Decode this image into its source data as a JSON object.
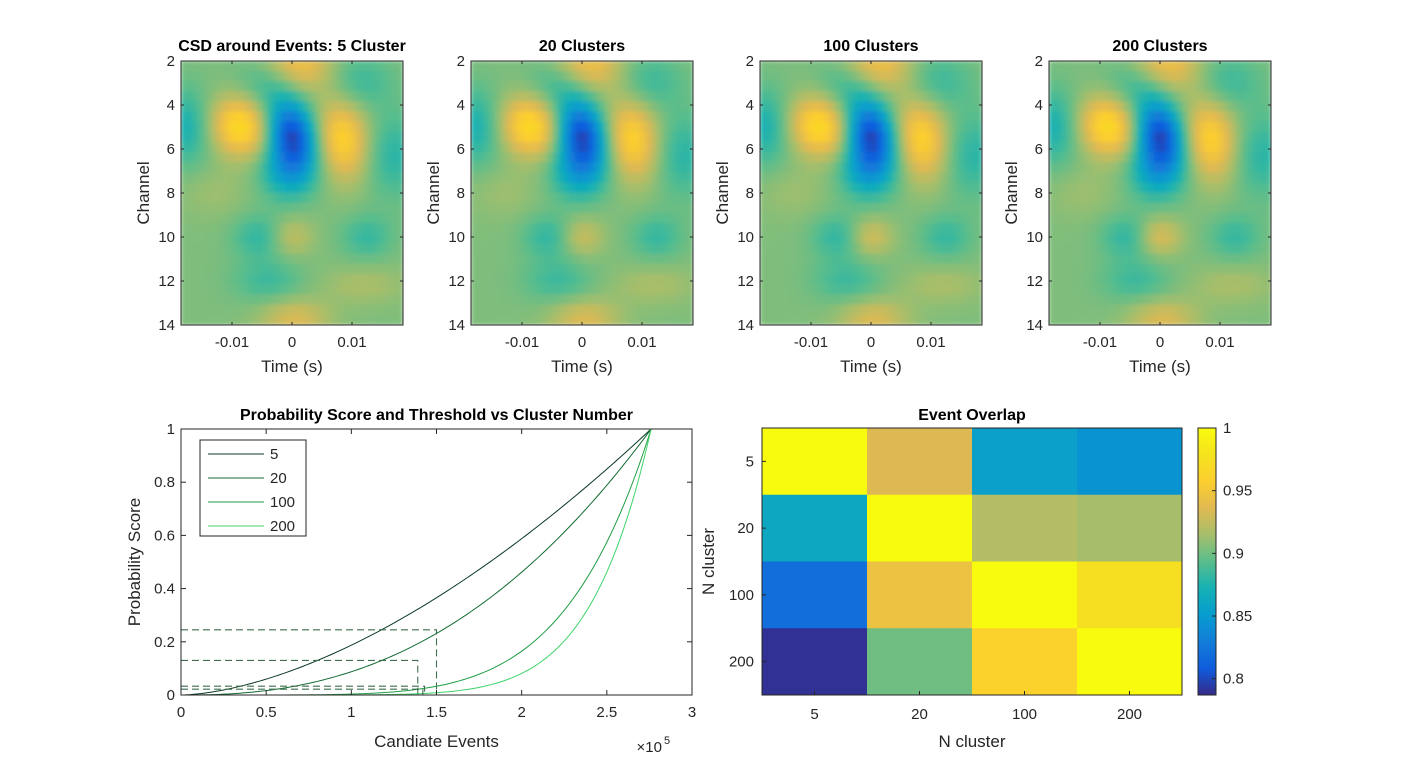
{
  "chart_data": [
    {
      "type": "heatmap",
      "title": "CSD around Events: 5 Cluster",
      "xlabel": "Time (s)",
      "ylabel": "Channel",
      "x_ticks": [
        "-0.01",
        "0",
        "0.01"
      ],
      "x_tick_values": [
        -0.01,
        0,
        0.01
      ],
      "xlim": [
        -0.0185,
        0.0185
      ],
      "y_ticks": [
        "2",
        "4",
        "6",
        "8",
        "10",
        "12",
        "14"
      ],
      "ylim": [
        2,
        14
      ],
      "y_reversed": true,
      "colormap": "parula"
    },
    {
      "type": "heatmap",
      "title": "20 Clusters",
      "xlabel": "Time (s)",
      "ylabel": "Channel",
      "x_ticks": [
        "-0.01",
        "0",
        "0.01"
      ],
      "x_tick_values": [
        -0.01,
        0,
        0.01
      ],
      "xlim": [
        -0.0185,
        0.0185
      ],
      "y_ticks": [
        "2",
        "4",
        "6",
        "8",
        "10",
        "12",
        "14"
      ],
      "ylim": [
        2,
        14
      ],
      "y_reversed": true,
      "colormap": "parula"
    },
    {
      "type": "heatmap",
      "title": "100 Clusters",
      "xlabel": "Time (s)",
      "ylabel": "Channel",
      "x_ticks": [
        "-0.01",
        "0",
        "0.01"
      ],
      "x_tick_values": [
        -0.01,
        0,
        0.01
      ],
      "xlim": [
        -0.0185,
        0.0185
      ],
      "y_ticks": [
        "2",
        "4",
        "6",
        "8",
        "10",
        "12",
        "14"
      ],
      "ylim": [
        2,
        14
      ],
      "y_reversed": true,
      "colormap": "parula"
    },
    {
      "type": "heatmap",
      "title": "200 Clusters",
      "xlabel": "Time (s)",
      "ylabel": "Channel",
      "x_ticks": [
        "-0.01",
        "0",
        "0.01"
      ],
      "x_tick_values": [
        -0.01,
        0,
        0.01
      ],
      "xlim": [
        -0.0185,
        0.0185
      ],
      "y_ticks": [
        "2",
        "4",
        "6",
        "8",
        "10",
        "12",
        "14"
      ],
      "ylim": [
        2,
        14
      ],
      "y_reversed": true,
      "colormap": "parula"
    },
    {
      "type": "line",
      "title": "Probability Score and Threshold vs Cluster Number",
      "xlabel": "Candiate Events",
      "ylabel": "Probability Score",
      "x_exponent_label": "×10",
      "x_exponent": "5",
      "xlim": [
        0,
        3
      ],
      "ylim": [
        0,
        1
      ],
      "x_ticks": [
        "0",
        "0.5",
        "1",
        "1.5",
        "2",
        "2.5",
        "3"
      ],
      "y_ticks": [
        "0",
        "0.2",
        "0.4",
        "0.6",
        "0.8",
        "1"
      ],
      "legend_position": "top-left",
      "x_end": 2.76,
      "series": [
        {
          "name": "5",
          "color": "#0b3a24",
          "exponent": 1.65,
          "threshold": {
            "x": 1.5,
            "y": 0.245
          }
        },
        {
          "name": "20",
          "color": "#136b33",
          "exponent": 2.4,
          "threshold": {
            "x": 1.39,
            "y": 0.13
          }
        },
        {
          "name": "100",
          "color": "#1f9d45",
          "exponent": 5.6,
          "threshold": {
            "x": 1.43,
            "y": 0.033
          }
        },
        {
          "name": "200",
          "color": "#3fd36a",
          "exponent": 7.8,
          "threshold": {
            "x": 1.42,
            "y": 0.022
          }
        }
      ],
      "threshold_color": "#3f6f4f"
    },
    {
      "type": "heatmap",
      "title": "Event Overlap",
      "xlabel": "N cluster",
      "ylabel": "N cluster",
      "categories": [
        "5",
        "20",
        "100",
        "200"
      ],
      "values": [
        [
          1.0,
          0.935,
          0.855,
          0.845
        ],
        [
          0.862,
          1.0,
          0.92,
          0.915
        ],
        [
          0.82,
          0.945,
          1.0,
          0.975
        ],
        [
          0.79,
          0.9,
          0.96,
          1.0
        ]
      ],
      "colorbar": {
        "min": 0.787,
        "max": 1.0,
        "ticks": [
          "0.8",
          "0.85",
          "0.9",
          "0.95",
          "1"
        ],
        "tick_values": [
          0.8,
          0.85,
          0.9,
          0.95,
          1.0
        ]
      },
      "colormap": "parula"
    }
  ]
}
